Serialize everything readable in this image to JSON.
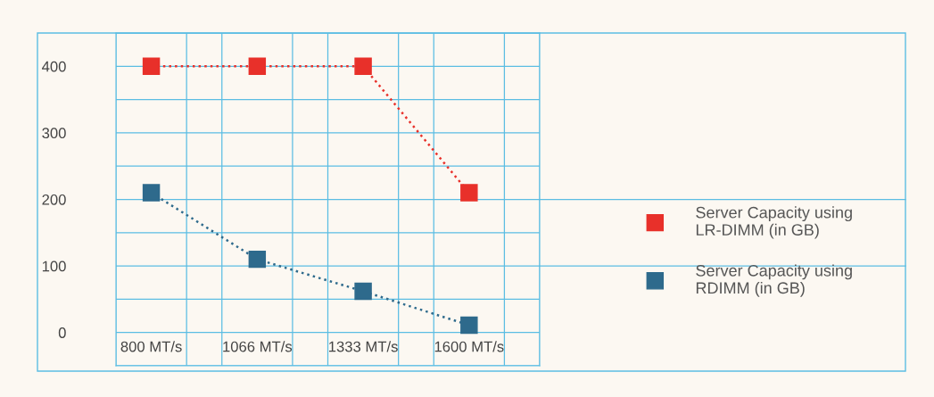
{
  "chart_data": {
    "type": "line",
    "categories": [
      "800 MT/s",
      "1066 MT/s",
      "1333 MT/s",
      "1600 MT/s"
    ],
    "series": [
      {
        "name": "Server Capacity using\nLR-DIMM (in GB)",
        "color": "#e8302a",
        "values": [
          400,
          400,
          400,
          210
        ]
      },
      {
        "name": "Server Capacity using\nRDIMM (in GB)",
        "color": "#2e6a8c",
        "values": [
          210,
          110,
          62,
          11
        ]
      }
    ],
    "ylim": [
      -50,
      450
    ],
    "yticks": [
      {
        "value": -50,
        "label": null
      },
      0,
      {
        "value": 50,
        "label": null
      },
      100,
      {
        "value": 150,
        "label": null
      },
      200,
      {
        "value": 250,
        "label": null
      },
      300,
      {
        "value": 350,
        "label": null
      },
      400,
      {
        "value": 450,
        "label": null
      }
    ],
    "grid": true,
    "legend": "right",
    "marker": "square",
    "line_style": "dotted"
  }
}
